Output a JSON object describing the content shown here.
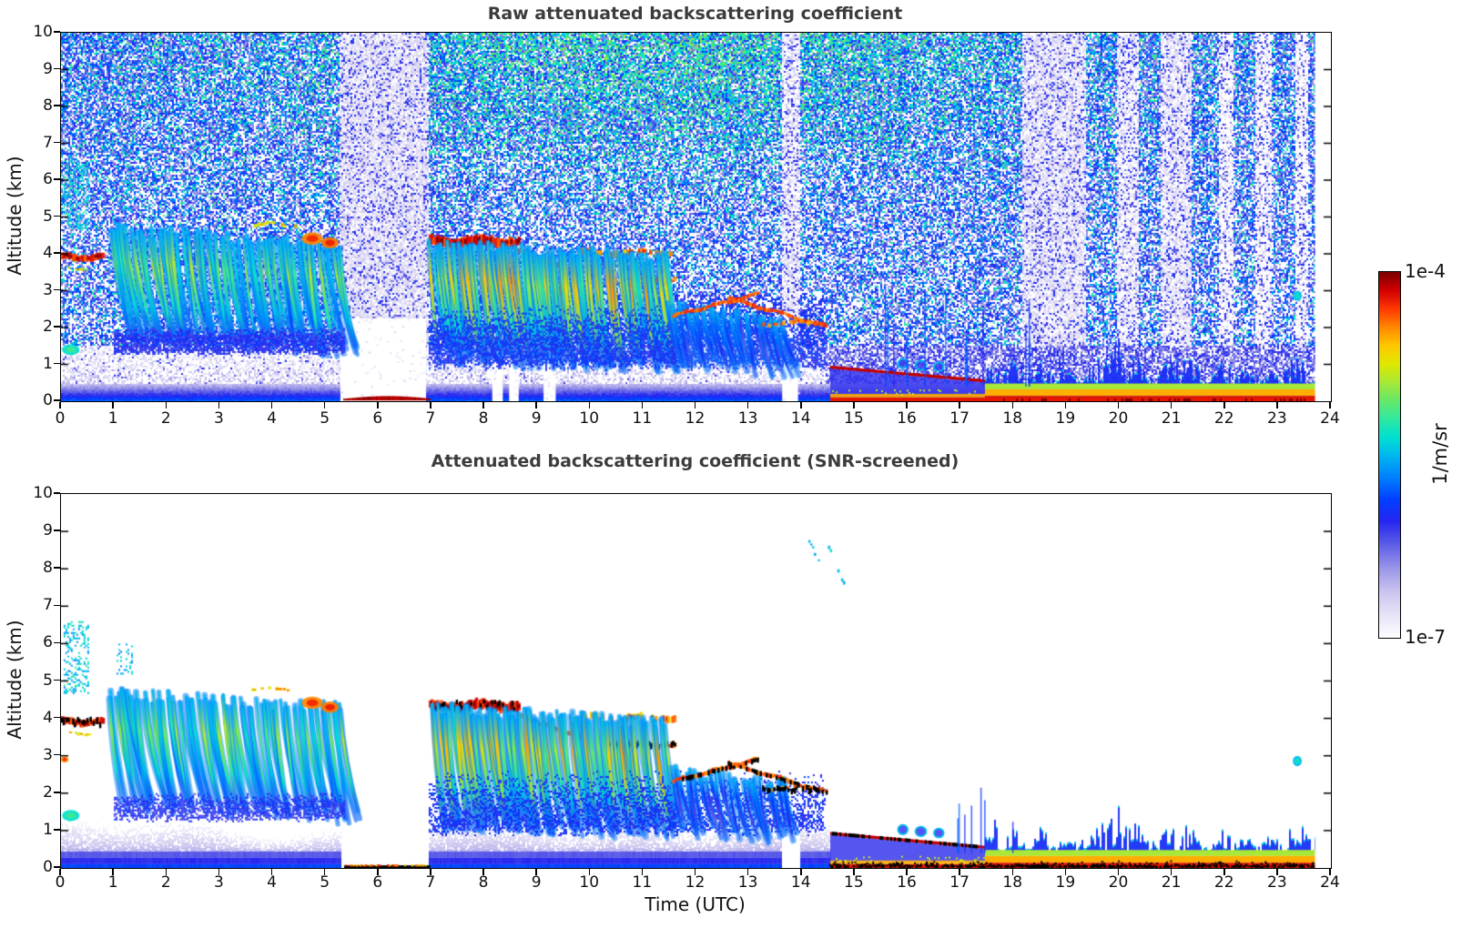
{
  "figure": {
    "background": "#ffffff",
    "title_color": "#3c3c3c"
  },
  "chart_data": {
    "type": "heatmap",
    "xlabel": "Time (UTC)",
    "ylabel": "Altitude (km)",
    "x_range": [
      0,
      24
    ],
    "y_range": [
      0,
      10
    ],
    "x_ticks": [
      0,
      1,
      2,
      3,
      4,
      5,
      6,
      7,
      8,
      9,
      10,
      11,
      12,
      13,
      14,
      15,
      16,
      17,
      18,
      19,
      20,
      21,
      22,
      23,
      24
    ],
    "y_ticks": [
      0,
      1,
      2,
      3,
      4,
      5,
      6,
      7,
      8,
      9,
      10
    ],
    "data_end_time": 23.7,
    "panels": [
      {
        "key": "raw",
        "title": "Raw attenuated backscattering coefficient"
      },
      {
        "key": "screened",
        "title": "Attenuated backscattering coefficient (SNR-screened)"
      }
    ],
    "colorbar": {
      "max_label": "1e-4",
      "min_label": "1e-7",
      "unit": "1/m/sr",
      "scale": "log",
      "stops": [
        [
          0.0,
          "#ffffff"
        ],
        [
          0.05,
          "#ece9f9"
        ],
        [
          0.12,
          "#cfc9f0"
        ],
        [
          0.19,
          "#9b97e8"
        ],
        [
          0.26,
          "#5a5ae8"
        ],
        [
          0.32,
          "#2626f0"
        ],
        [
          0.38,
          "#0040ff"
        ],
        [
          0.44,
          "#0080ff"
        ],
        [
          0.5,
          "#00b8f0"
        ],
        [
          0.55,
          "#00e0d0"
        ],
        [
          0.6,
          "#30e8a0"
        ],
        [
          0.65,
          "#68e868"
        ],
        [
          0.7,
          "#a8e838"
        ],
        [
          0.75,
          "#e0e800"
        ],
        [
          0.8,
          "#ffc800"
        ],
        [
          0.85,
          "#ff8800"
        ],
        [
          0.9,
          "#ff3800"
        ],
        [
          0.95,
          "#d40000"
        ],
        [
          1.0,
          "#7c0000"
        ]
      ]
    },
    "noise_bands": [
      [
        5.25,
        6.92,
        1.0
      ],
      [
        13.62,
        13.95,
        0.75
      ],
      [
        18.15,
        19.35,
        0.9
      ],
      [
        19.95,
        20.35,
        0.65
      ],
      [
        20.75,
        21.35,
        0.8
      ],
      [
        21.85,
        22.15,
        0.45
      ],
      [
        22.55,
        22.85,
        0.45
      ],
      [
        23.3,
        23.55,
        0.35
      ]
    ],
    "attenuation_gaps": [
      [
        5.28,
        6.9,
        2.25
      ],
      [
        8.15,
        8.35,
        1.45
      ],
      [
        8.47,
        8.65,
        1.45
      ],
      [
        9.12,
        9.35,
        1.45
      ],
      [
        13.63,
        13.93,
        2.4
      ]
    ],
    "screened_low_layers": [
      [
        0,
        5.28
      ],
      [
        6.95,
        13.62
      ],
      [
        13.95,
        14.55
      ]
    ],
    "raw_bottom_red_line": {
      "t": [
        5.35,
        6.98
      ],
      "alt": [
        0,
        0.12
      ]
    },
    "surface_layer": {
      "t_start": 14.55,
      "t_tall": 17.45,
      "t_end": 23.7,
      "desc_line": {
        "from": [
          14.55,
          0.92
        ],
        "to": [
          17.62,
          0.53
        ]
      }
    },
    "features": [
      {
        "type": "cloud_layer",
        "t": [
          0.0,
          0.78
        ],
        "alt": 3.92,
        "thickness": 0.16,
        "value": 0.97,
        "black_in_screened": true
      },
      {
        "type": "cloud_layer",
        "t": [
          0.12,
          0.6
        ],
        "alt": 3.62,
        "thickness": 0.06,
        "value": 0.8,
        "patchy": 0.4
      },
      {
        "type": "speckle_spot",
        "t": [
          0.05,
          0.5
        ],
        "alt": [
          4.7,
          6.6
        ],
        "value": 0.52,
        "density": 0.3
      },
      {
        "type": "speckle_spot",
        "t": [
          1.05,
          1.35
        ],
        "alt": [
          5.2,
          6.0
        ],
        "value": 0.5,
        "density": 0.22
      },
      {
        "type": "spot",
        "t": [
          0.02,
          0.35
        ],
        "alt": [
          1.25,
          1.55
        ],
        "value": 0.55
      },
      {
        "type": "spot",
        "t": [
          0.0,
          0.14
        ],
        "alt": [
          2.82,
          2.98
        ],
        "value": 0.85,
        "screened_only": true
      },
      {
        "type": "virga_cluster",
        "t": [
          0.9,
          5.35
        ],
        "top": [
          4.65,
          4.25
        ],
        "bottom": [
          1.75,
          1.35
        ],
        "n": 78,
        "core": [
          0.45,
          0.72
        ],
        "lean": 0.35
      },
      {
        "type": "blue_fringe",
        "t": [
          1.0,
          5.35
        ],
        "alt": [
          1.25,
          2.05
        ],
        "value": 0.32
      },
      {
        "type": "cloud_layer",
        "t": [
          3.6,
          4.45
        ],
        "alt": 4.78,
        "thickness": 0.08,
        "value": 0.82,
        "patchy": 0.5
      },
      {
        "type": "spot",
        "t": [
          4.55,
          4.95
        ],
        "alt": [
          4.25,
          4.58
        ],
        "value": 0.85
      },
      {
        "type": "spot",
        "t": [
          4.92,
          5.25
        ],
        "alt": [
          4.15,
          4.45
        ],
        "value": 0.86
      },
      {
        "type": "cloud_layer",
        "t": [
          6.95,
          8.65
        ],
        "alt": 4.34,
        "thickness": 0.24,
        "value": 0.97,
        "black_in_screened": true
      },
      {
        "type": "diag_line",
        "from": [
          8.6,
          4.08
        ],
        "to": [
          9.78,
          3.5
        ],
        "thickness": 0.12,
        "value": 0.9
      },
      {
        "type": "cloud_layer",
        "t": [
          9.82,
          11.6
        ],
        "alt": 4.02,
        "thickness": 0.16,
        "value": 0.88,
        "patchy": 0.45
      },
      {
        "type": "cloud_layer",
        "t": [
          10.32,
          11.62
        ],
        "alt": 3.32,
        "thickness": 0.13,
        "value": 0.9,
        "patchy": 0.5,
        "black_in_screened": true
      },
      {
        "type": "virga_cluster",
        "t": [
          7.0,
          11.45
        ],
        "top": [
          4.25,
          3.85
        ],
        "bottom": [
          1.2,
          0.95
        ],
        "n": 105,
        "core": [
          0.55,
          0.84
        ],
        "lean": 0.3
      },
      {
        "type": "blue_fringe",
        "t": [
          6.95,
          14.45
        ],
        "alt": [
          0.85,
          2.65
        ],
        "value": 0.34,
        "fade_top": true
      },
      {
        "type": "virga_cluster",
        "t": [
          11.5,
          13.75
        ],
        "top": [
          2.6,
          2.2
        ],
        "bottom": [
          1.0,
          0.8
        ],
        "n": 30,
        "core": [
          0.3,
          0.45
        ],
        "lean": 0.25
      },
      {
        "type": "diag_line",
        "from": [
          11.55,
          2.32
        ],
        "to": [
          13.15,
          2.9
        ],
        "thickness": 0.1,
        "value": 0.92,
        "black_in_screened": true
      },
      {
        "type": "diag_line",
        "from": [
          12.6,
          2.8
        ],
        "to": [
          14.45,
          2.02
        ],
        "thickness": 0.1,
        "value": 0.92,
        "black_in_screened": true
      },
      {
        "type": "cloud_layer",
        "t": [
          13.25,
          14.3
        ],
        "alt": 2.12,
        "thickness": 0.1,
        "value": 0.9,
        "patchy": 0.55,
        "black_in_screened": true
      },
      {
        "type": "diag_line",
        "from": [
          14.28,
          9.35
        ],
        "to": [
          14.85,
          7.35
        ],
        "thickness": 0.09,
        "value": 0.57,
        "patchy": 0.5
      },
      {
        "type": "diag_line",
        "from": [
          14.05,
          9.0
        ],
        "to": [
          14.3,
          8.2
        ],
        "thickness": 0.07,
        "value": 0.52,
        "patchy": 0.6
      },
      {
        "type": "spot",
        "t": [
          15.82,
          16.0
        ],
        "alt": [
          0.9,
          1.15
        ],
        "value": 0.5,
        "ring": true
      },
      {
        "type": "spot",
        "t": [
          16.15,
          16.35
        ],
        "alt": [
          0.85,
          1.1
        ],
        "value": 0.5,
        "ring": true
      },
      {
        "type": "spot",
        "t": [
          16.5,
          16.68
        ],
        "alt": [
          0.82,
          1.05
        ],
        "value": 0.5,
        "ring": true
      },
      {
        "type": "spot",
        "t": [
          23.28,
          23.45
        ],
        "alt": [
          2.72,
          3.0
        ],
        "value": 0.5
      }
    ]
  }
}
